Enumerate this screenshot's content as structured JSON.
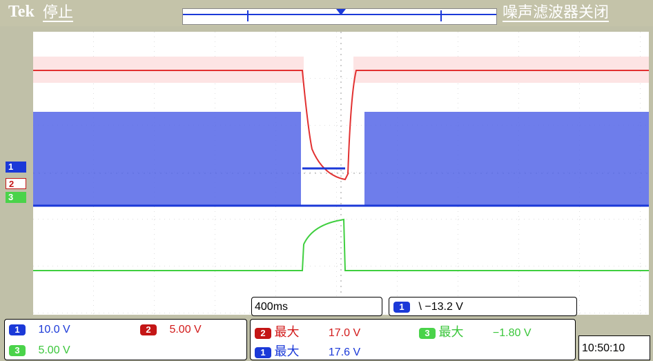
{
  "header": {
    "brand": "Tek",
    "status": "停止",
    "filter_status": "噪声滤波器关闭"
  },
  "markers": {
    "ch1": "1",
    "ch2": "2",
    "ch3": "3"
  },
  "timebase": "400ms",
  "trigger": {
    "channel": "1",
    "slope_symbol": "\\",
    "level": "−13.2 V"
  },
  "channels": [
    {
      "id": "1",
      "scale": "10.0 V",
      "color": "#1b39d8"
    },
    {
      "id": "2",
      "scale": "5.00 V",
      "color": "#c41616"
    },
    {
      "id": "3",
      "scale": "5.00 V",
      "color": "#4ad34a"
    }
  ],
  "measurements": [
    {
      "channel": "2",
      "label": "最大",
      "value": "17.0 V"
    },
    {
      "channel": "3",
      "label": "最大",
      "value": "−1.80 V"
    },
    {
      "channel": "1",
      "label": "最大",
      "value": "17.6 V"
    }
  ],
  "clock": "10:50:10"
}
